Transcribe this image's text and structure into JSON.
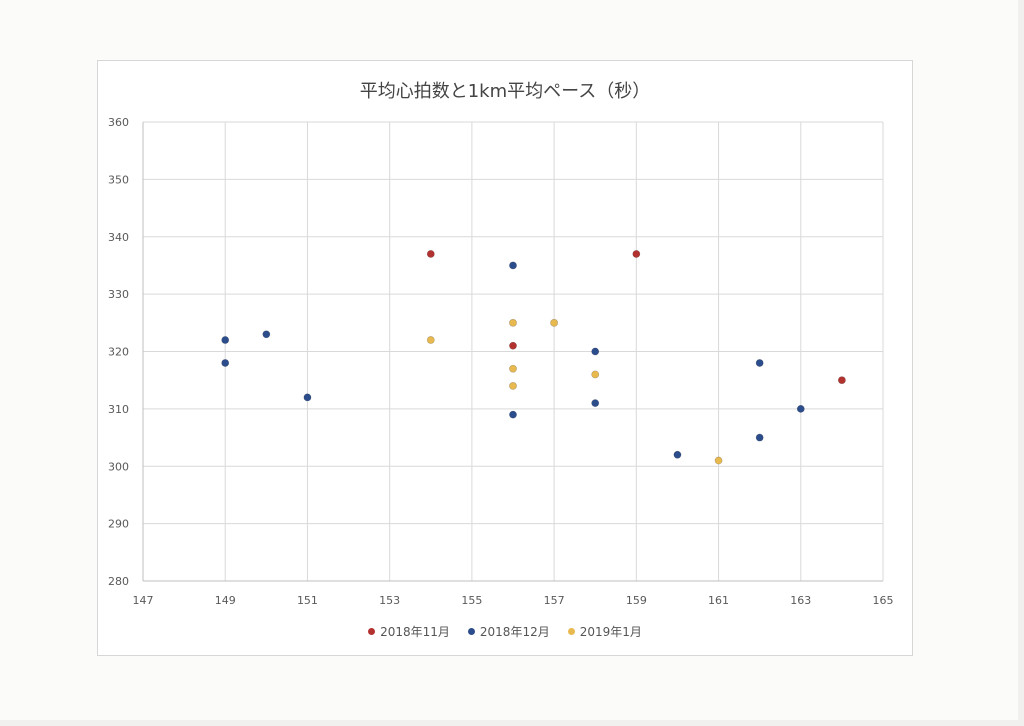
{
  "chart_data": {
    "type": "scatter",
    "title": "平均心拍数と1km平均ペース（秒）",
    "xlabel": "",
    "ylabel": "",
    "xlim": [
      147,
      165
    ],
    "ylim": [
      280,
      360
    ],
    "xticks": [
      147,
      149,
      151,
      153,
      155,
      157,
      159,
      161,
      163,
      165
    ],
    "yticks": [
      280,
      290,
      300,
      310,
      320,
      330,
      340,
      350,
      360
    ],
    "grid": true,
    "legend_position": "bottom",
    "series": [
      {
        "name": "2018年11月",
        "color": "#b3322f",
        "points": [
          [
            154,
            337
          ],
          [
            156,
            321
          ],
          [
            159,
            337
          ],
          [
            164,
            315
          ]
        ]
      },
      {
        "name": "2018年12月",
        "color": "#2c4d8c",
        "points": [
          [
            149,
            322
          ],
          [
            149,
            318
          ],
          [
            150,
            323
          ],
          [
            151,
            312
          ],
          [
            156,
            335
          ],
          [
            156,
            309
          ],
          [
            158,
            320
          ],
          [
            158,
            311
          ],
          [
            160,
            302
          ],
          [
            162,
            318
          ],
          [
            162,
            305
          ],
          [
            163,
            310
          ]
        ]
      },
      {
        "name": "2019年1月",
        "color": "#e8b94f",
        "points": [
          [
            154,
            322
          ],
          [
            156,
            325
          ],
          [
            156,
            317
          ],
          [
            156,
            314
          ],
          [
            157,
            325
          ],
          [
            158,
            316
          ],
          [
            161,
            301
          ]
        ]
      }
    ]
  }
}
